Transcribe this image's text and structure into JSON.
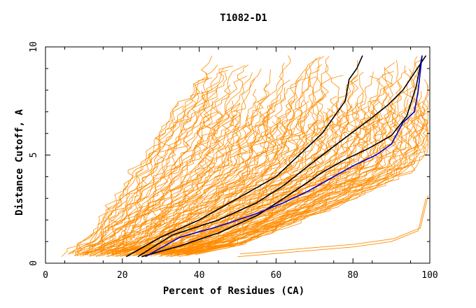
{
  "chart_data": {
    "type": "line",
    "title": "T1082-D1",
    "xlabel": "Percent of Residues (CA)",
    "ylabel": "Distance Cutoff, A",
    "xlim": [
      0,
      100
    ],
    "ylim": [
      0,
      10
    ],
    "x_ticks": [
      0,
      20,
      40,
      60,
      80,
      100
    ],
    "y_ticks": [
      0,
      5,
      10
    ],
    "grid": false,
    "colors": {
      "background_models": "#ff8c00",
      "highlight_black": "#000000",
      "highlight_blue": "#0000cc"
    },
    "background_band": {
      "description_of_mass": "many orange GDT curves",
      "left_edge": [
        [
          5,
          0.3
        ],
        [
          10,
          1.0
        ],
        [
          15,
          2.2
        ],
        [
          20,
          3.5
        ],
        [
          25,
          4.8
        ],
        [
          30,
          6.2
        ],
        [
          35,
          7.5
        ],
        [
          40,
          8.8
        ],
        [
          43,
          9.6
        ]
      ],
      "right_edge": [
        [
          35,
          0.3
        ],
        [
          50,
          0.8
        ],
        [
          60,
          1.5
        ],
        [
          70,
          2.2
        ],
        [
          80,
          3.0
        ],
        [
          90,
          3.8
        ],
        [
          97,
          4.5
        ],
        [
          100,
          5.5
        ],
        [
          100,
          9.6
        ]
      ]
    },
    "outlier_series": {
      "name": "",
      "x": [
        50,
        60,
        70,
        80,
        90,
        97,
        99
      ],
      "y": [
        0.3,
        0.45,
        0.6,
        0.75,
        1.0,
        1.5,
        3.0
      ]
    },
    "series": [
      {
        "name": "",
        "color": "#000000",
        "x": [
          21,
          30,
          40,
          50,
          60,
          66,
          72,
          76,
          78,
          79,
          81,
          82.5
        ],
        "y": [
          0.3,
          1.2,
          2.0,
          3.0,
          4.0,
          5.0,
          6.0,
          7.0,
          7.5,
          8.5,
          9.0,
          9.6
        ]
      },
      {
        "name": "",
        "color": "#000000",
        "x": [
          24,
          33,
          45,
          55,
          62,
          67,
          72,
          78,
          84,
          89,
          93,
          96,
          99
        ],
        "y": [
          0.3,
          1.3,
          2.0,
          2.8,
          3.6,
          4.3,
          5.0,
          5.8,
          6.6,
          7.3,
          8.0,
          8.8,
          9.6
        ]
      },
      {
        "name": "",
        "color": "#000000",
        "x": [
          25,
          35,
          45,
          55,
          62,
          67,
          72,
          78,
          84,
          90,
          94,
          96.5,
          98
        ],
        "y": [
          0.3,
          0.8,
          1.4,
          2.2,
          3.0,
          3.6,
          4.2,
          4.8,
          5.3,
          5.9,
          6.8,
          8.2,
          9.6
        ]
      },
      {
        "name": "",
        "color": "#0000cc",
        "x": [
          26,
          35,
          45,
          55,
          62,
          68,
          74,
          80,
          86,
          90,
          93,
          96,
          97,
          98
        ],
        "y": [
          0.3,
          1.2,
          1.7,
          2.3,
          2.8,
          3.3,
          3.9,
          4.5,
          5.0,
          5.5,
          6.5,
          7.0,
          8.0,
          9.6
        ]
      }
    ]
  }
}
